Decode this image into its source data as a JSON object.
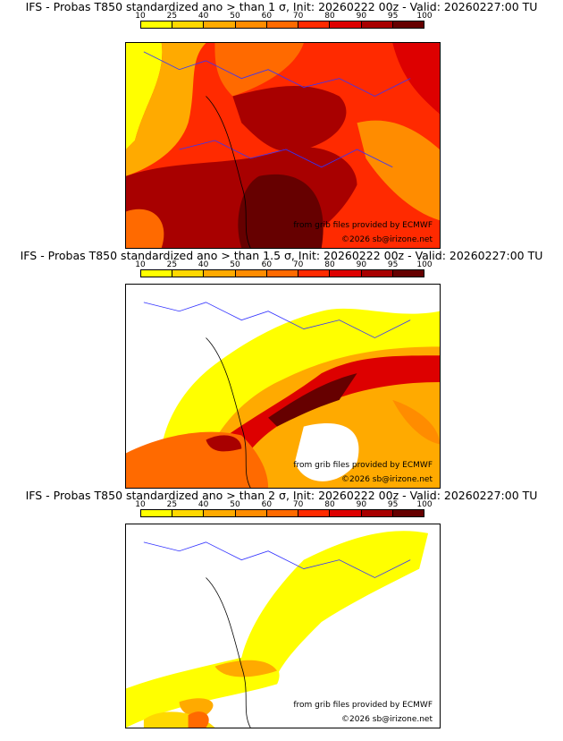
{
  "colorbar": {
    "ticks": [
      "10",
      "25",
      "40",
      "50",
      "60",
      "70",
      "80",
      "90",
      "95",
      "100"
    ],
    "colors": [
      "#ffff00",
      "#ffd800",
      "#ffaa00",
      "#ff8c00",
      "#ff6a00",
      "#ff2a00",
      "#dd0000",
      "#a80000",
      "#660000"
    ]
  },
  "panels": [
    {
      "title": "IFS - Probas T850  standardized ano > than 1 σ, Init: 20260222 00z - Valid: 20260227:00 TU",
      "credit": "from grib files provided by ECMWF",
      "copyright": "©2026 sb@irizone.net"
    },
    {
      "title": "IFS - Probas T850  standardized ano > than 1.5 σ, Init: 20260222 00z - Valid: 20260227:00 TU",
      "credit": "from grib files provided by ECMWF",
      "copyright": "©2026 sb@irizone.net"
    },
    {
      "title": "IFS - Probas T850  standardized ano > than 2 σ, Init: 20260222 00z - Valid: 20260227:00 TU",
      "credit": "from grib files provided by ECMWF",
      "copyright": "©2026 sb@irizone.net"
    }
  ]
}
